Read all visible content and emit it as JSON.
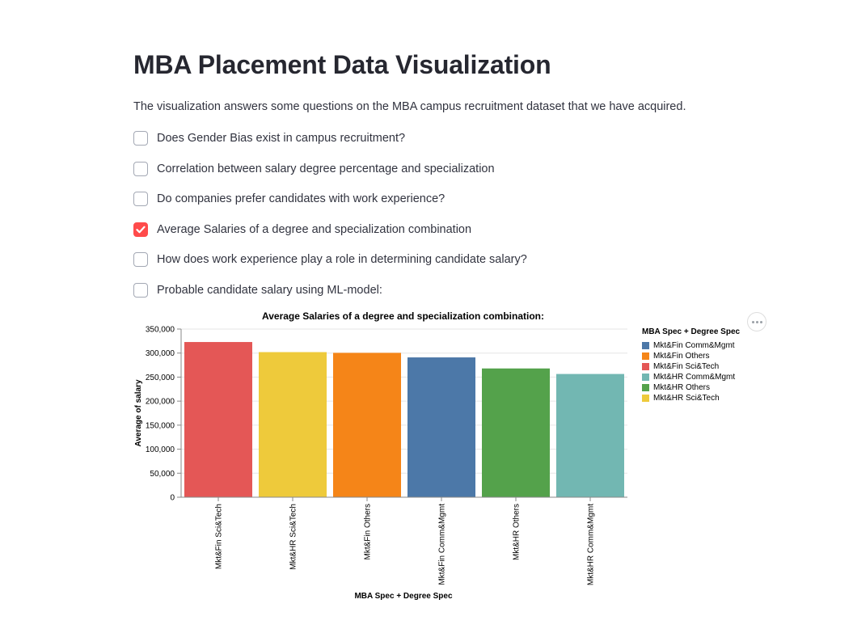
{
  "page": {
    "title": "MBA Placement Data Visualization",
    "intro": "The visualization answers some questions on the MBA campus recruitment dataset that we have acquired."
  },
  "questions": [
    {
      "label": "Does Gender Bias exist in campus recruitment?",
      "checked": false
    },
    {
      "label": "Correlation between salary degree percentage and specialization",
      "checked": false
    },
    {
      "label": "Do companies prefer candidates with work experience?",
      "checked": false
    },
    {
      "label": "Average Salaries of a degree and specialization combination",
      "checked": true
    },
    {
      "label": "How does work experience play a role in determining candidate salary?",
      "checked": false
    },
    {
      "label": "Probable candidate salary using ML-model:",
      "checked": false
    }
  ],
  "colors": {
    "accent": "#ff4b4b",
    "Mkt&Fin Comm&Mgmt": "#4c78a8",
    "Mkt&Fin Others": "#f58518",
    "Mkt&Fin Sci&Tech": "#e45756",
    "Mkt&HR Comm&Mgmt": "#72b7b2",
    "Mkt&HR Others": "#54a24b",
    "Mkt&HR Sci&Tech": "#eeca3b"
  },
  "chart_data": {
    "type": "bar",
    "title": "Average Salaries of a degree and specialization combination:",
    "xlabel": "MBA Spec + Degree Spec",
    "ylabel": "Average of salary",
    "categories": [
      "Mkt&Fin Sci&Tech",
      "Mkt&HR Sci&Tech",
      "Mkt&Fin Others",
      "Mkt&Fin Comm&Mgmt",
      "Mkt&HR Others",
      "Mkt&HR Comm&Mgmt"
    ],
    "values": [
      323000,
      302000,
      300500,
      291000,
      268000,
      256500
    ],
    "ylim": [
      0,
      350000
    ],
    "yticks": [
      0,
      50000,
      100000,
      150000,
      200000,
      250000,
      300000,
      350000
    ],
    "ytick_labels": [
      "0",
      "50,000",
      "100,000",
      "150,000",
      "200,000",
      "250,000",
      "300,000",
      "350,000"
    ],
    "grid": true,
    "legend": {
      "title": "MBA Spec + Degree Spec",
      "position": "right",
      "entries": [
        "Mkt&Fin Comm&Mgmt",
        "Mkt&Fin Others",
        "Mkt&Fin Sci&Tech",
        "Mkt&HR Comm&Mgmt",
        "Mkt&HR Others",
        "Mkt&HR Sci&Tech"
      ]
    }
  }
}
